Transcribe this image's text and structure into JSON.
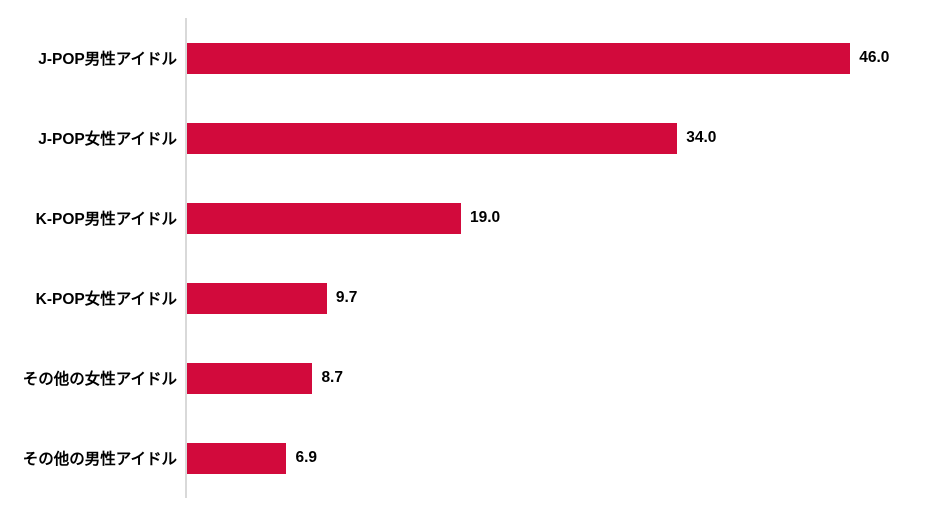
{
  "chart_data": {
    "type": "bar",
    "orientation": "horizontal",
    "title": "",
    "xlabel": "",
    "ylabel": "",
    "categories": [
      "J-POP男性アイドル",
      "J-POP女性アイドル",
      "K-POP男性アイドル",
      "K-POP女性アイドル",
      "その他の女性アイドル",
      "その他の男性アイドル"
    ],
    "values": [
      46.0,
      34.0,
      19.0,
      9.7,
      8.7,
      6.9
    ],
    "value_labels": [
      "46.0",
      "34.0",
      "19.0",
      "9.7",
      "8.7",
      "6.9"
    ],
    "xlim": [
      0,
      51.6
    ],
    "grid": false,
    "legend": false,
    "bar_color": "#d20a3c",
    "axis_line_color": "#d9d9d9",
    "text_color": "#000000",
    "background_color": "#ffffff"
  }
}
